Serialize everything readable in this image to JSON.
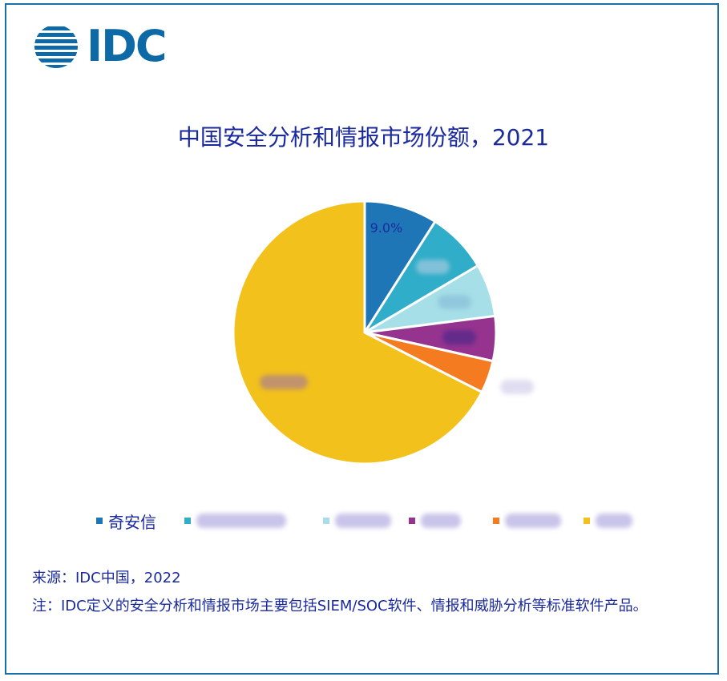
{
  "logo": {
    "text": "IDC",
    "color": "#0e6aa6"
  },
  "chart_data": {
    "type": "pie",
    "title": "中国安全分析和情报市场份额，2021",
    "slices": [
      {
        "name": "奇安信",
        "value": 9.0,
        "label": "9.0%",
        "color": "#1f76b7"
      },
      {
        "name": "",
        "value": 7.5,
        "label": "",
        "color": "#30adc8"
      },
      {
        "name": "",
        "value": 6.5,
        "label": "",
        "color": "#a6dfe8"
      },
      {
        "name": "",
        "value": 5.5,
        "label": "",
        "color": "#96338f"
      },
      {
        "name": "",
        "value": 4.0,
        "label": "",
        "color": "#f47b20"
      },
      {
        "name": "",
        "value": 67.5,
        "label": "",
        "color": "#f2c11c"
      }
    ],
    "legend_position": "bottom"
  },
  "footer": {
    "source": "来源：IDC中国，2022",
    "note": "注：IDC定义的安全分析和情报市场主要包括SIEM/SOC软件、情报和威胁分析等标准软件产品。"
  }
}
